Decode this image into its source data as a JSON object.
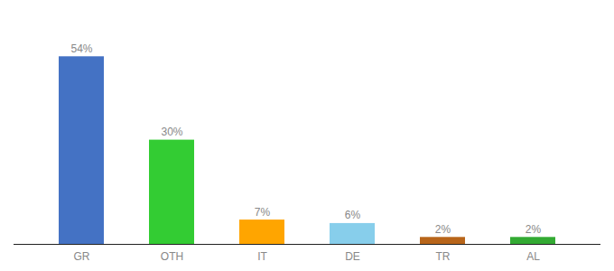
{
  "chart_data": {
    "type": "bar",
    "categories": [
      "GR",
      "OTH",
      "IT",
      "DE",
      "TR",
      "AL"
    ],
    "values": [
      54,
      30,
      7,
      6,
      2,
      2
    ],
    "value_labels": [
      "54%",
      "30%",
      "7%",
      "6%",
      "2%",
      "2%"
    ],
    "colors": [
      "#4472C4",
      "#33CC33",
      "#FFA500",
      "#87CEEB",
      "#B8651A",
      "#33AA33"
    ],
    "ylim": [
      0,
      65
    ],
    "data_labels": true,
    "tick_labels": "x"
  }
}
